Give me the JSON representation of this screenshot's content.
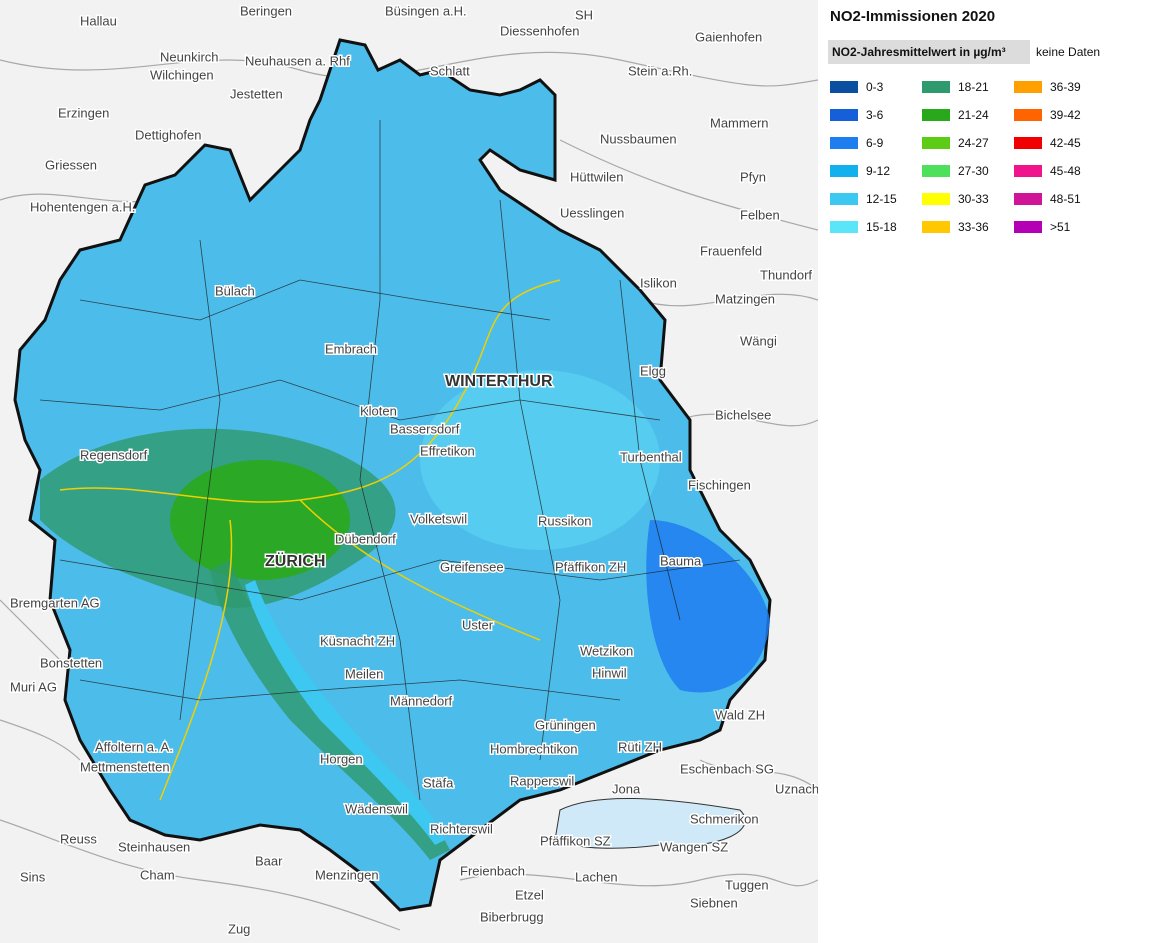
{
  "legend": {
    "title": "NO2-Immissionen 2020",
    "header": "NO2-Jahresmittelwert in µg/m³",
    "no_data": "keine Daten",
    "classes": [
      {
        "label": "0-3",
        "color": "#0a4fa0"
      },
      {
        "label": "3-6",
        "color": "#1560d8"
      },
      {
        "label": "6-9",
        "color": "#1e7ef0"
      },
      {
        "label": "9-12",
        "color": "#12b0ec"
      },
      {
        "label": "12-15",
        "color": "#3cc8f0"
      },
      {
        "label": "15-18",
        "color": "#5ae6f8"
      },
      {
        "label": "18-21",
        "color": "#2e9a6e"
      },
      {
        "label": "21-24",
        "color": "#2aa81c"
      },
      {
        "label": "24-27",
        "color": "#5ccc14"
      },
      {
        "label": "27-30",
        "color": "#4ee05a"
      },
      {
        "label": "30-33",
        "color": "#ffff00"
      },
      {
        "label": "33-36",
        "color": "#ffc800"
      },
      {
        "label": "36-39",
        "color": "#ffa000"
      },
      {
        "label": "39-42",
        "color": "#ff6400"
      },
      {
        "label": "42-45",
        "color": "#f00000"
      },
      {
        "label": "45-48",
        "color": "#f0148c"
      },
      {
        "label": "48-51",
        "color": "#d01496"
      },
      {
        "label": ">51",
        "color": "#b400b4"
      }
    ]
  },
  "map": {
    "labels": [
      "Hallau",
      "Beringen",
      "Büsingen a.H.",
      "SH",
      "Diessenhofen",
      "Gaienhofen",
      "Neunkirch",
      "Neuhausen a. Rhf",
      "Schlatt",
      "Stein a.Rh.",
      "Erzingen",
      "Wilchingen",
      "Jestetten",
      "Mammern",
      "Dettighofen",
      "Griessen",
      "Nussbaumen",
      "Hüttwilen",
      "Hohentengen a.H.",
      "Uesslingen",
      "Felben",
      "Frauenfeld",
      "Pfyn",
      "Thundorf",
      "Islikon",
      "Matzingen",
      "Wängi",
      "Bülach",
      "Embrach",
      "Kloten",
      "WINTERTHUR",
      "Elgg",
      "Bassersdorf",
      "Regensdorf",
      "Turbenthal",
      "Fischingen",
      "Effretikon",
      "Volketswil",
      "Russikon",
      "Pfäffikon ZH",
      "Bauma",
      "Bichelsee",
      "ZÜRICH",
      "Dübendorf",
      "Greifensee",
      "Uster",
      "Wetzikon",
      "Hinwil",
      "Wald ZH",
      "Bremgarten AG",
      "Bonstetten",
      "Küsnacht ZH",
      "Meilen",
      "Männedorf",
      "Stäfa",
      "Horgen",
      "Wädenswil",
      "Richterswil",
      "Rüti ZH",
      "Hombrechtikon",
      "Grüningen",
      "Eschenbach SG",
      "Jona",
      "Rapperswil",
      "Schmerikon",
      "Uznach",
      "Pfäffikon SZ",
      "Wangen SZ",
      "Tuggen",
      "Freienbach",
      "Lachen",
      "Siebnen",
      "Baar",
      "Zug",
      "Cham",
      "Menzingen",
      "Steinhausen",
      "Muri AG",
      "Affoltern a. A.",
      "Mettmenstetten",
      "Sins",
      "Reuss",
      "Etzel",
      "Biberbrugg"
    ]
  }
}
